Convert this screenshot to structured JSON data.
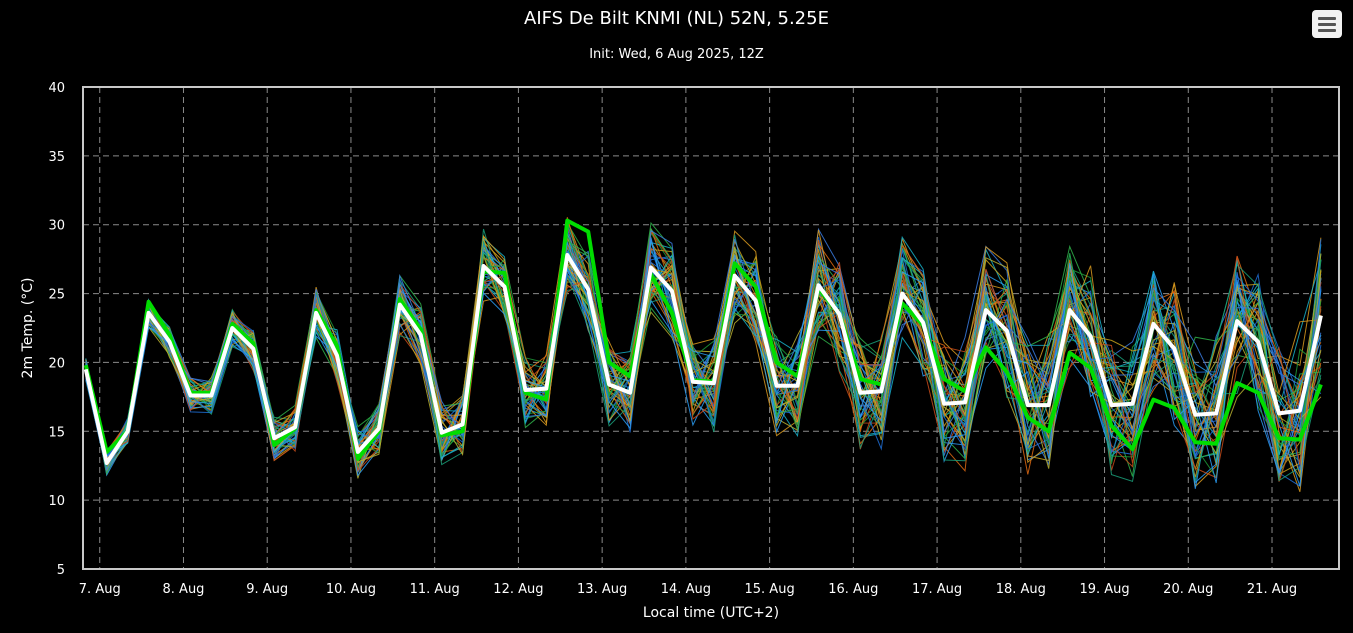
{
  "chart_data": {
    "type": "line",
    "title": "AIFS De Bilt KNMI (NL) 52N, 5.25E",
    "subtitle": "Init: Wed, 6 Aug 2025, 12Z",
    "xlabel": "Local time (UTC+2)",
    "ylabel": "2m Temp. (°C)",
    "ylim": [
      5,
      40
    ],
    "yticks": [
      5,
      10,
      15,
      20,
      25,
      30,
      35,
      40
    ],
    "x_start_label": "6 Aug 2025 20:00",
    "x_step_hours": 6,
    "xlim_days": [
      6.8,
      21.8
    ],
    "xticks": [
      "7. Aug",
      "8. Aug",
      "9. Aug",
      "10. Aug",
      "11. Aug",
      "12. Aug",
      "13. Aug",
      "14. Aug",
      "15. Aug",
      "16. Aug",
      "17. Aug",
      "18. Aug",
      "19. Aug",
      "20. Aug",
      "21. Aug"
    ],
    "grid": true,
    "legend": "none",
    "series": [
      {
        "role": "mean",
        "color": "#ffffff",
        "values": [
          19.5,
          12.7,
          15.0,
          23.6,
          21.5,
          17.6,
          17.6,
          22.5,
          21.0,
          14.5,
          15.3,
          23.6,
          20.5,
          13.5,
          15.2,
          24.2,
          22.0,
          14.9,
          15.5,
          27.0,
          25.5,
          18.0,
          18.1,
          27.8,
          25.3,
          18.4,
          17.8,
          26.9,
          25.2,
          18.6,
          18.5,
          26.3,
          24.5,
          18.3,
          18.3,
          25.6,
          23.5,
          17.8,
          17.9,
          25.0,
          22.9,
          17.0,
          17.1,
          23.8,
          22.3,
          16.9,
          16.9,
          23.8,
          21.9,
          16.9,
          17.0,
          22.8,
          21.0,
          16.2,
          16.3,
          23.0,
          21.5,
          16.3,
          16.5,
          23.4
        ]
      },
      {
        "role": "control",
        "color": "#00dd00",
        "values": [
          19.8,
          13.5,
          15.0,
          24.4,
          22.0,
          17.8,
          17.8,
          22.8,
          21.4,
          14.0,
          15.2,
          23.8,
          21.2,
          13.0,
          15.0,
          24.6,
          22.4,
          14.7,
          15.0,
          26.6,
          26.5,
          17.8,
          17.3,
          30.3,
          29.5,
          20.0,
          19.0,
          26.4,
          23.6,
          18.7,
          18.6,
          27.2,
          25.5,
          20.0,
          19.0,
          25.4,
          23.5,
          18.8,
          18.4,
          24.3,
          22.7,
          18.8,
          17.9,
          21.1,
          19.3,
          16.0,
          15.0,
          20.7,
          19.6,
          15.4,
          13.7,
          17.3,
          16.7,
          14.2,
          14.1,
          18.5,
          17.8,
          14.5,
          14.4,
          18.4
        ]
      }
    ]
  }
}
